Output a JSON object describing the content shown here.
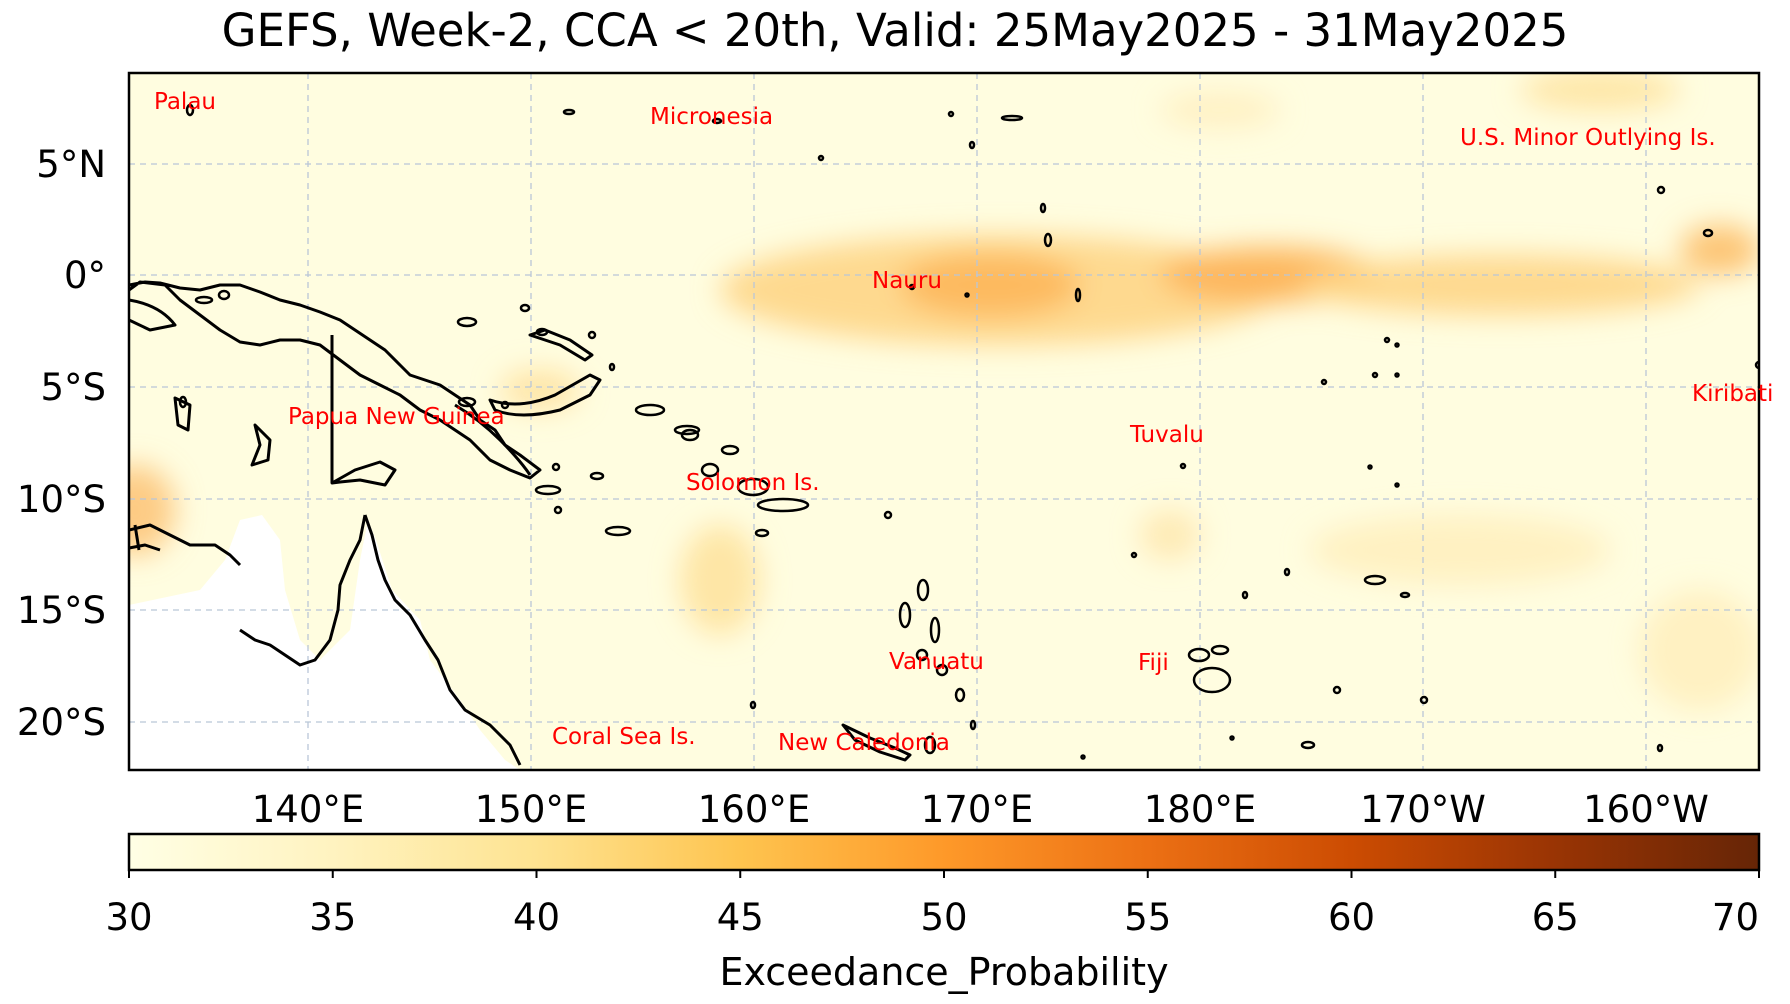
{
  "title": "GEFS, Week-2, CCA < 20th, Valid: 25May2025 - 31May2025",
  "map": {
    "lat_ticks": [
      "5°N",
      "0°",
      "5°S",
      "10°S",
      "15°S",
      "20°S"
    ],
    "lon_ticks": [
      "140°E",
      "150°E",
      "160°E",
      "170°E",
      "180°E",
      "170°W",
      "160°W"
    ],
    "grid": true,
    "background_color": "#fffde0",
    "land_color": "#ffffff",
    "places": [
      {
        "name": "Palau"
      },
      {
        "name": "Micronesia"
      },
      {
        "name": "U.S. Minor Outlying Is."
      },
      {
        "name": "Nauru"
      },
      {
        "name": "Kiribati"
      },
      {
        "name": "Papua New Guinea"
      },
      {
        "name": "Tuvalu"
      },
      {
        "name": "Solomon Is."
      },
      {
        "name": "Vanuatu"
      },
      {
        "name": "Fiji"
      },
      {
        "name": "Coral Sea Is."
      },
      {
        "name": "New Caledonia"
      }
    ]
  },
  "colorbar": {
    "label": "Exceedance_Probability",
    "ticks": [
      "30",
      "35",
      "40",
      "45",
      "50",
      "55",
      "60",
      "65",
      "70"
    ],
    "min": 30,
    "max": 70,
    "colors": [
      "#ffffe5",
      "#fff3c0",
      "#fee391",
      "#fec44f",
      "#fe9929",
      "#ec7014",
      "#cc4c02",
      "#993404",
      "#662506"
    ]
  }
}
